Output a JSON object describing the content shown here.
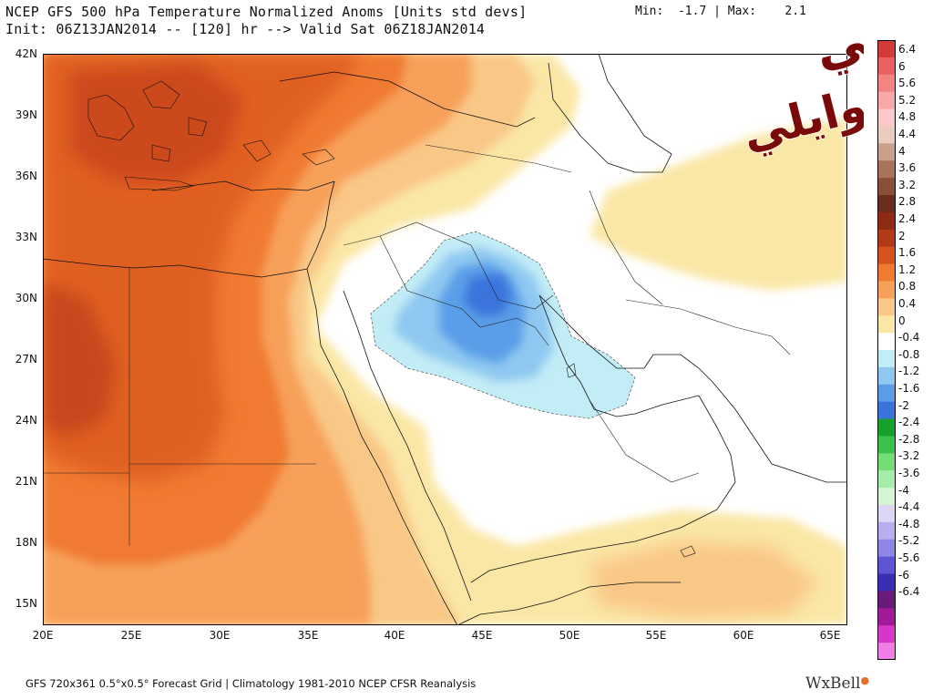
{
  "header": {
    "title_line1": "NCEP GFS 500 hPa Temperature Normalized Anoms [Units std devs]",
    "title_line2": "Init: 06Z13JAN2014 -- [120] hr --> Valid Sat 06Z18JAN2014",
    "min_label": "Min:",
    "min_value": "-1.7",
    "separator": "|",
    "max_label": "Max:",
    "max_value": "2.1"
  },
  "map": {
    "lon_labels": [
      "20E",
      "25E",
      "30E",
      "35E",
      "40E",
      "45E",
      "50E",
      "55E",
      "60E",
      "65E"
    ],
    "lat_labels": [
      "42N",
      "39N",
      "36N",
      "33N",
      "30N",
      "27N",
      "24N",
      "21N",
      "18N",
      "15N"
    ]
  },
  "colorbar": {
    "labels": [
      "6.4",
      "6",
      "5.6",
      "5.2",
      "4.8",
      "4.4",
      "4",
      "3.6",
      "3.2",
      "2.8",
      "2.4",
      "2",
      "1.6",
      "1.2",
      "0.8",
      "0.4",
      "0",
      "-0.4",
      "-0.8",
      "-1.2",
      "-1.6",
      "-2",
      "-2.4",
      "-2.8",
      "-3.2",
      "-3.6",
      "-4",
      "-4.4",
      "-4.8",
      "-5.2",
      "-5.6",
      "-6",
      "-6.4"
    ],
    "colors": [
      "#d33a3a",
      "#ea6060",
      "#f48484",
      "#f8a8a8",
      "#fac8c8",
      "#eaccc0",
      "#c9a089",
      "#a8735a",
      "#8a4f38",
      "#6b2d1e",
      "#8f2a14",
      "#b33a17",
      "#d6531d",
      "#f07a30",
      "#f7a05a",
      "#f9c887",
      "#fae7a6",
      "#ffffff",
      "#c2ecf6",
      "#8fc8f0",
      "#5a9ee8",
      "#3a74db",
      "#16a12a",
      "#3cc24a",
      "#74dd73",
      "#a6ecaa",
      "#d4f4d5",
      "#ddd6f4",
      "#b7aeef",
      "#8f86e6",
      "#5c56d6",
      "#3a2fb2",
      "#6a1a78",
      "#a01a9a",
      "#d836c8",
      "#f07ee6"
    ]
  },
  "footer": {
    "info": "GFS 720x361 0.5°x0.5° Forecast Grid | Climatology 1981-2010 NCEP CFSR Reanalysis",
    "brand": "WxBell"
  },
  "watermark": {
    "line1": "تركي",
    "line2": "الوايلي"
  }
}
